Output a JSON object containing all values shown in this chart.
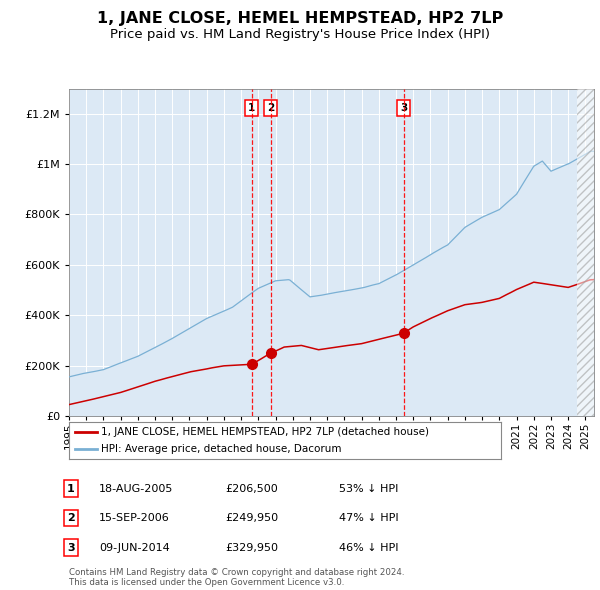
{
  "title": "1, JANE CLOSE, HEMEL HEMPSTEAD, HP2 7LP",
  "subtitle": "Price paid vs. HM Land Registry's House Price Index (HPI)",
  "title_fontsize": 11.5,
  "subtitle_fontsize": 9.5,
  "plot_bg_color": "#dce9f5",
  "line_color_red": "#cc0000",
  "line_color_blue": "#7ab0d4",
  "ylim": [
    0,
    1300000
  ],
  "yticks": [
    0,
    200000,
    400000,
    600000,
    800000,
    1000000,
    1200000
  ],
  "legend_red": "1, JANE CLOSE, HEMEL HEMPSTEAD, HP2 7LP (detached house)",
  "legend_blue": "HPI: Average price, detached house, Dacorum",
  "transactions": [
    {
      "num": 1,
      "date": "18-AUG-2005",
      "price": "£206,500",
      "pct": "53% ↓ HPI",
      "year": 2005.62,
      "val": 206500
    },
    {
      "num": 2,
      "date": "15-SEP-2006",
      "price": "£249,950",
      "pct": "47% ↓ HPI",
      "year": 2006.71,
      "val": 249950
    },
    {
      "num": 3,
      "date": "09-JUN-2014",
      "price": "£329,950",
      "pct": "46% ↓ HPI",
      "year": 2014.44,
      "val": 329950
    }
  ],
  "footer": "Contains HM Land Registry data © Crown copyright and database right 2024.\nThis data is licensed under the Open Government Licence v3.0.",
  "xstart": 1995.0,
  "xend": 2025.5,
  "blue_anchors_year": [
    1995,
    1997,
    1999,
    2001,
    2003,
    2004.5,
    2006,
    2007,
    2007.8,
    2009,
    2010,
    2011,
    2012,
    2013,
    2014,
    2015,
    2016,
    2017,
    2018,
    2019,
    2020,
    2021,
    2022,
    2022.5,
    2023,
    2024,
    2025.3
  ],
  "blue_anchors_val": [
    155000,
    185000,
    240000,
    310000,
    390000,
    435000,
    510000,
    540000,
    545000,
    475000,
    485000,
    498000,
    510000,
    525000,
    560000,
    600000,
    640000,
    680000,
    750000,
    790000,
    820000,
    880000,
    990000,
    1010000,
    970000,
    1000000,
    1050000
  ],
  "red_anchors_year": [
    1995,
    1996,
    1998,
    2000,
    2002,
    2004,
    2005.62,
    2006.71,
    2007.5,
    2008.5,
    2009.5,
    2011,
    2012,
    2013,
    2014.44,
    2015,
    2016,
    2017,
    2018,
    2019,
    2020,
    2021,
    2022,
    2023,
    2024,
    2025.3
  ],
  "red_anchors_val": [
    45000,
    60000,
    95000,
    140000,
    175000,
    200000,
    206500,
    249950,
    275000,
    280000,
    262000,
    278000,
    288000,
    305000,
    329950,
    355000,
    390000,
    420000,
    445000,
    455000,
    470000,
    505000,
    535000,
    525000,
    515000,
    545000
  ]
}
